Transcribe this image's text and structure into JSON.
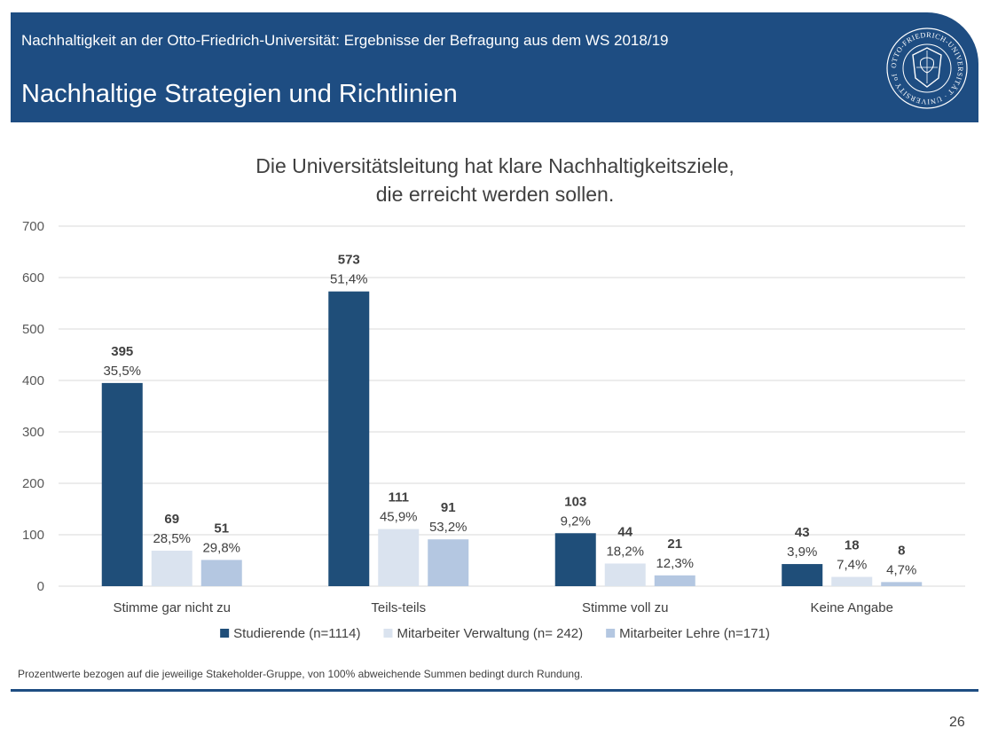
{
  "header": {
    "subtitle": "Nachhaltigkeit an der Otto-Friedrich-Universität: Ergebnisse der Befragung aus dem WS 2018/19",
    "title": "Nachhaltige Strategien und Richtlinien",
    "logo_text": "OTTO-FRIEDRICH-UNIVERSITÄT · UNIVERSITY of BAMBERG ·"
  },
  "chart_data": {
    "type": "bar",
    "title_lines": [
      "Die Universitätsleitung hat klare Nachhaltigkeitsziele,",
      "die erreicht werden sollen."
    ],
    "categories": [
      "Stimme gar nicht zu",
      "Teils-teils",
      "Stimme voll zu",
      "Keine Angabe"
    ],
    "ylim": [
      0,
      700
    ],
    "yticks": [
      0,
      100,
      200,
      300,
      400,
      500,
      600,
      700
    ],
    "grid": true,
    "legend_position": "bottom",
    "series": [
      {
        "name": "Studierende (n=1114)",
        "color": "#1f4e79",
        "values": [
          395,
          573,
          103,
          43
        ],
        "value_labels": [
          "395",
          "573",
          "103",
          "43"
        ],
        "percent_labels": [
          "35,5%",
          "51,4%",
          "9,2%",
          "3,9%"
        ]
      },
      {
        "name": "Mitarbeiter Verwaltung (n= 242)",
        "color": "#dae3ef",
        "values": [
          69,
          111,
          44,
          18
        ],
        "value_labels": [
          "69",
          "111",
          "44",
          "18"
        ],
        "percent_labels": [
          "28,5%",
          "45,9%",
          "18,2%",
          "7,4%"
        ]
      },
      {
        "name": "Mitarbeiter Lehre (n=171)",
        "color": "#b4c7e1",
        "values": [
          51,
          91,
          21,
          8
        ],
        "value_labels": [
          "51",
          "91",
          "21",
          "8"
        ],
        "percent_labels": [
          "29,8%",
          "53,2%",
          "12,3%",
          "4,7%"
        ]
      }
    ]
  },
  "footnote": "Prozentwerte bezogen auf die jeweilige Stakeholder-Gruppe, von 100% abweichende Summen bedingt durch Rundung.",
  "page_number": "26"
}
